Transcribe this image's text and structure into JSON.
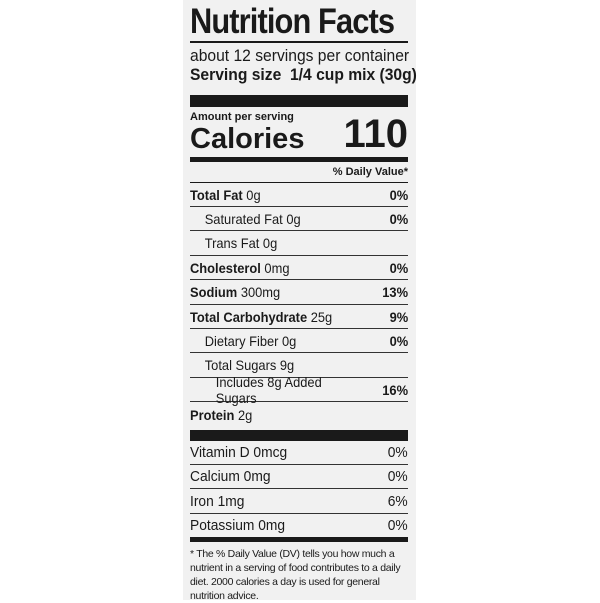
{
  "title": "Nutrition Facts",
  "servings": "about 12 servings per container",
  "serving_size_label": "Serving size",
  "serving_size_value": "1/4 cup mix (30g)",
  "amount_per_serving": "Amount per serving",
  "calories_label": "Calories",
  "calories_value": "110",
  "dv_header": "% Daily Value*",
  "nutrients": [
    {
      "label": "Total Fat",
      "amount": "0g",
      "dv": "0%"
    },
    {
      "label": "Saturated Fat 0g",
      "amount": "",
      "dv": "0%"
    },
    {
      "label": "Trans Fat 0g",
      "amount": "",
      "dv": ""
    },
    {
      "label": "Cholesterol",
      "amount": "0mg",
      "dv": "0%"
    },
    {
      "label": "Sodium",
      "amount": "300mg",
      "dv": "13%"
    },
    {
      "label": "Total Carbohydrate",
      "amount": "25g",
      "dv": "9%"
    },
    {
      "label": "Dietary Fiber 0g",
      "amount": "",
      "dv": "0%"
    },
    {
      "label": "Total Sugars 9g",
      "amount": "",
      "dv": ""
    },
    {
      "label": "Includes 8g Added Sugars",
      "amount": "",
      "dv": "16%"
    },
    {
      "label": "Protein",
      "amount": "2g",
      "dv": ""
    }
  ],
  "vitamins": [
    {
      "label": "Vitamin D 0mcg",
      "dv": "0%"
    },
    {
      "label": "Calcium 0mg",
      "dv": "0%"
    },
    {
      "label": "Iron 1mg",
      "dv": "6%"
    },
    {
      "label": "Potassium 0mg",
      "dv": "0%"
    }
  ],
  "footnote": "* The % Daily Value (DV) tells you how much a nutrient in a serving of food contributes to a daily diet. 2000 calories a day is used for general nutrition advice."
}
